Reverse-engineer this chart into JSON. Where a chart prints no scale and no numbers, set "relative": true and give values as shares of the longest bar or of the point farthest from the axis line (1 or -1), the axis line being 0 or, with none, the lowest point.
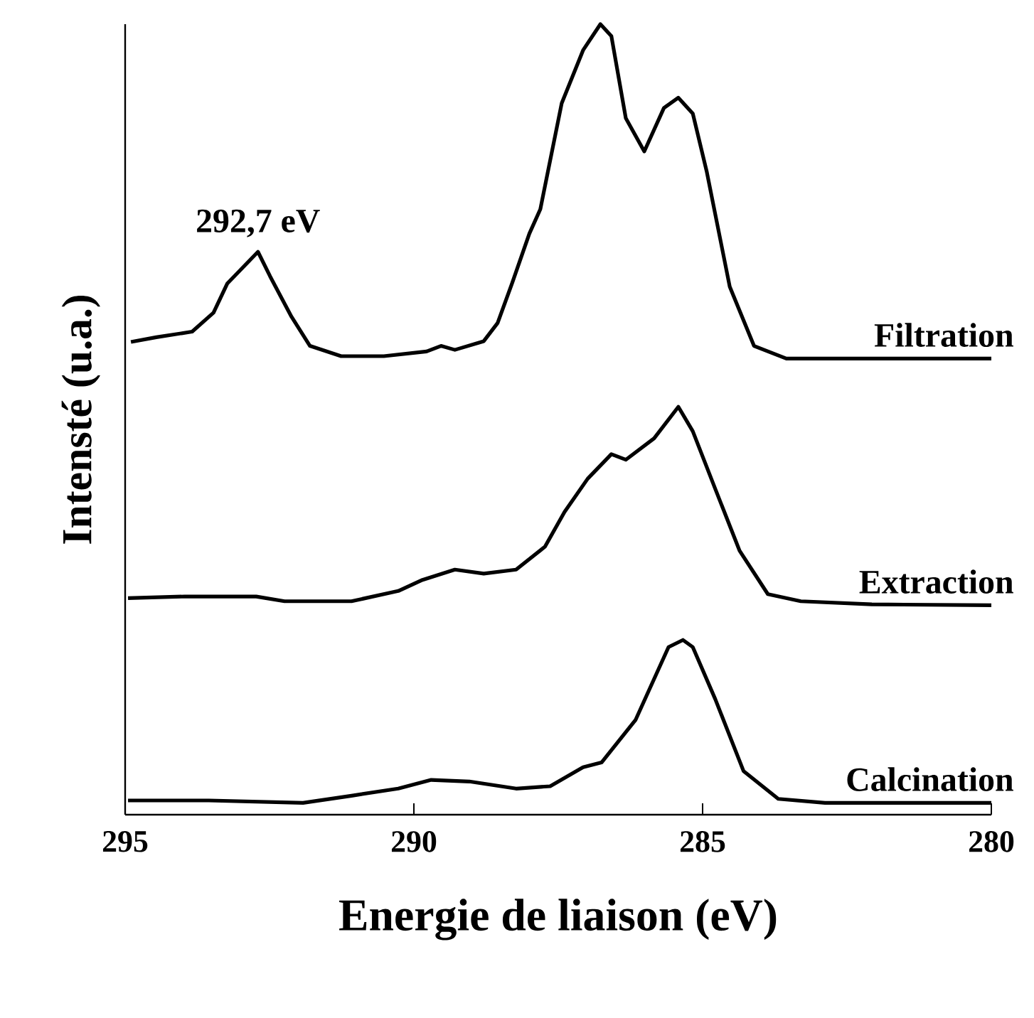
{
  "chart_data": {
    "type": "line",
    "relative": true,
    "xlabel": "Energie de liaison (eV)",
    "ylabel": "Intensté (u.a.)",
    "xlim": [
      295,
      280
    ],
    "xticks": [
      295,
      290,
      285,
      280
    ],
    "legend": false,
    "marker": "none",
    "line_style": "solid",
    "annotations": [
      {
        "text": "292,7 eV",
        "x": 292.7,
        "y": 0.712
      }
    ],
    "series": [
      {
        "name": "Filtration",
        "color": "#000000",
        "x": [
          294.9,
          294.46,
          293.84,
          293.47,
          293.23,
          292.7,
          292.49,
          292.12,
          291.8,
          291.26,
          290.52,
          289.78,
          289.53,
          289.29,
          288.79,
          288.55,
          288.3,
          288.0,
          287.81,
          287.44,
          287.07,
          286.77,
          286.58,
          286.33,
          286.01,
          285.67,
          285.42,
          285.17,
          284.93,
          284.53,
          284.11,
          283.55,
          282.88,
          282.07,
          281.23,
          280.0
        ],
        "values": [
          0.598,
          0.604,
          0.611,
          0.635,
          0.672,
          0.712,
          0.681,
          0.63,
          0.593,
          0.58,
          0.58,
          0.586,
          0.593,
          0.588,
          0.599,
          0.622,
          0.672,
          0.735,
          0.766,
          0.9,
          0.967,
          1.0,
          0.985,
          0.881,
          0.839,
          0.894,
          0.907,
          0.887,
          0.814,
          0.668,
          0.593,
          0.577,
          0.577,
          0.577,
          0.577,
          0.577
        ]
      },
      {
        "name": "Extraction",
        "color": "#000000",
        "x": [
          294.95,
          293.97,
          292.73,
          292.24,
          291.08,
          290.27,
          289.85,
          289.29,
          288.79,
          288.23,
          287.73,
          287.39,
          286.99,
          286.58,
          286.33,
          285.84,
          285.42,
          285.17,
          284.78,
          284.36,
          283.87,
          283.3,
          282.07,
          280.0
        ],
        "values": [
          0.274,
          0.276,
          0.276,
          0.27,
          0.27,
          0.283,
          0.297,
          0.31,
          0.305,
          0.31,
          0.339,
          0.383,
          0.425,
          0.456,
          0.449,
          0.476,
          0.516,
          0.485,
          0.412,
          0.334,
          0.279,
          0.27,
          0.266,
          0.265
        ]
      },
      {
        "name": "Calcination",
        "color": "#000000",
        "x": [
          294.95,
          293.55,
          291.92,
          291.08,
          290.27,
          289.7,
          289.04,
          288.23,
          287.64,
          287.07,
          286.75,
          286.16,
          285.59,
          285.34,
          285.17,
          284.78,
          284.29,
          283.69,
          282.88,
          281.23,
          280.0
        ],
        "values": [
          0.018,
          0.018,
          0.015,
          0.024,
          0.033,
          0.044,
          0.042,
          0.033,
          0.036,
          0.06,
          0.066,
          0.12,
          0.212,
          0.221,
          0.212,
          0.146,
          0.055,
          0.02,
          0.015,
          0.015,
          0.015
        ]
      }
    ]
  }
}
